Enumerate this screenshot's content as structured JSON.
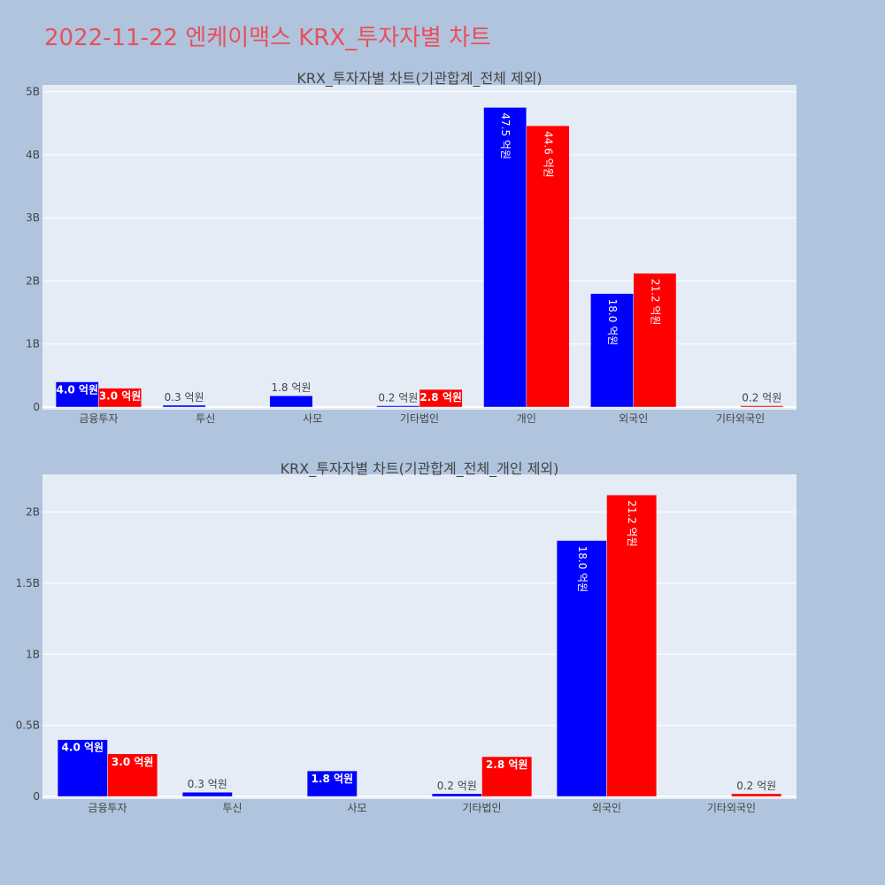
{
  "page": {
    "title": "2022-11-22 엔케이맥스 KRX_투자자별 차트"
  },
  "colors": {
    "background": "#b0c4de",
    "plot_bg": "#e5ecf6",
    "title": "#e8505b",
    "series_a": "#0000ff",
    "series_b": "#ff0000"
  },
  "chart_data": [
    {
      "type": "bar",
      "title": "KRX_투자자별 차트(기관합계_전체 제외)",
      "categories": [
        "금융투자",
        "투신",
        "사모",
        "기타법인",
        "개인",
        "외국인",
        "기타외국인"
      ],
      "series": [
        {
          "values": [
            0.4,
            0.03,
            0.18,
            0.02,
            4.75,
            1.8,
            null
          ],
          "labels": [
            "4.0 억원",
            "0.3 억원",
            "1.8 억원",
            "0.2 억원",
            "47.5 억원",
            "18.0 억원",
            null
          ],
          "color": "#0000ff"
        },
        {
          "values": [
            0.3,
            null,
            null,
            0.28,
            4.46,
            2.12,
            0.02
          ],
          "labels": [
            "3.0 억원",
            null,
            null,
            "2.8 억원",
            "44.6 억원",
            "21.2 억원",
            "0.2 억원"
          ],
          "color": "#ff0000"
        }
      ],
      "yunit": "B",
      "ylim": [
        0,
        5.05
      ],
      "yticks": [
        0,
        1,
        2,
        3,
        4,
        5
      ],
      "ytick_labels": [
        "0",
        "1B",
        "2B",
        "3B",
        "4B",
        "5B"
      ],
      "grid": true
    },
    {
      "type": "bar",
      "title": "KRX_투자자별 차트(기관합계_전체_개인 제외)",
      "categories": [
        "금융투자",
        "투신",
        "사모",
        "기타법인",
        "외국인",
        "기타외국인"
      ],
      "series": [
        {
          "values": [
            0.4,
            0.03,
            0.18,
            0.02,
            1.8,
            null
          ],
          "labels": [
            "4.0 억원",
            "0.3 억원",
            "1.8 억원",
            "0.2 억원",
            "18.0 억원",
            null
          ],
          "color": "#0000ff"
        },
        {
          "values": [
            0.3,
            null,
            null,
            0.28,
            2.12,
            0.02
          ],
          "labels": [
            "3.0 억원",
            null,
            null,
            "2.8 억원",
            "21.2 억원",
            "0.2 억원"
          ],
          "color": "#ff0000"
        }
      ],
      "yunit": "B",
      "ylim": [
        0,
        2.24
      ],
      "yticks": [
        0,
        0.5,
        1,
        1.5,
        2
      ],
      "ytick_labels": [
        "0",
        "0.5B",
        "1B",
        "1.5B",
        "2B"
      ],
      "grid": true
    }
  ]
}
